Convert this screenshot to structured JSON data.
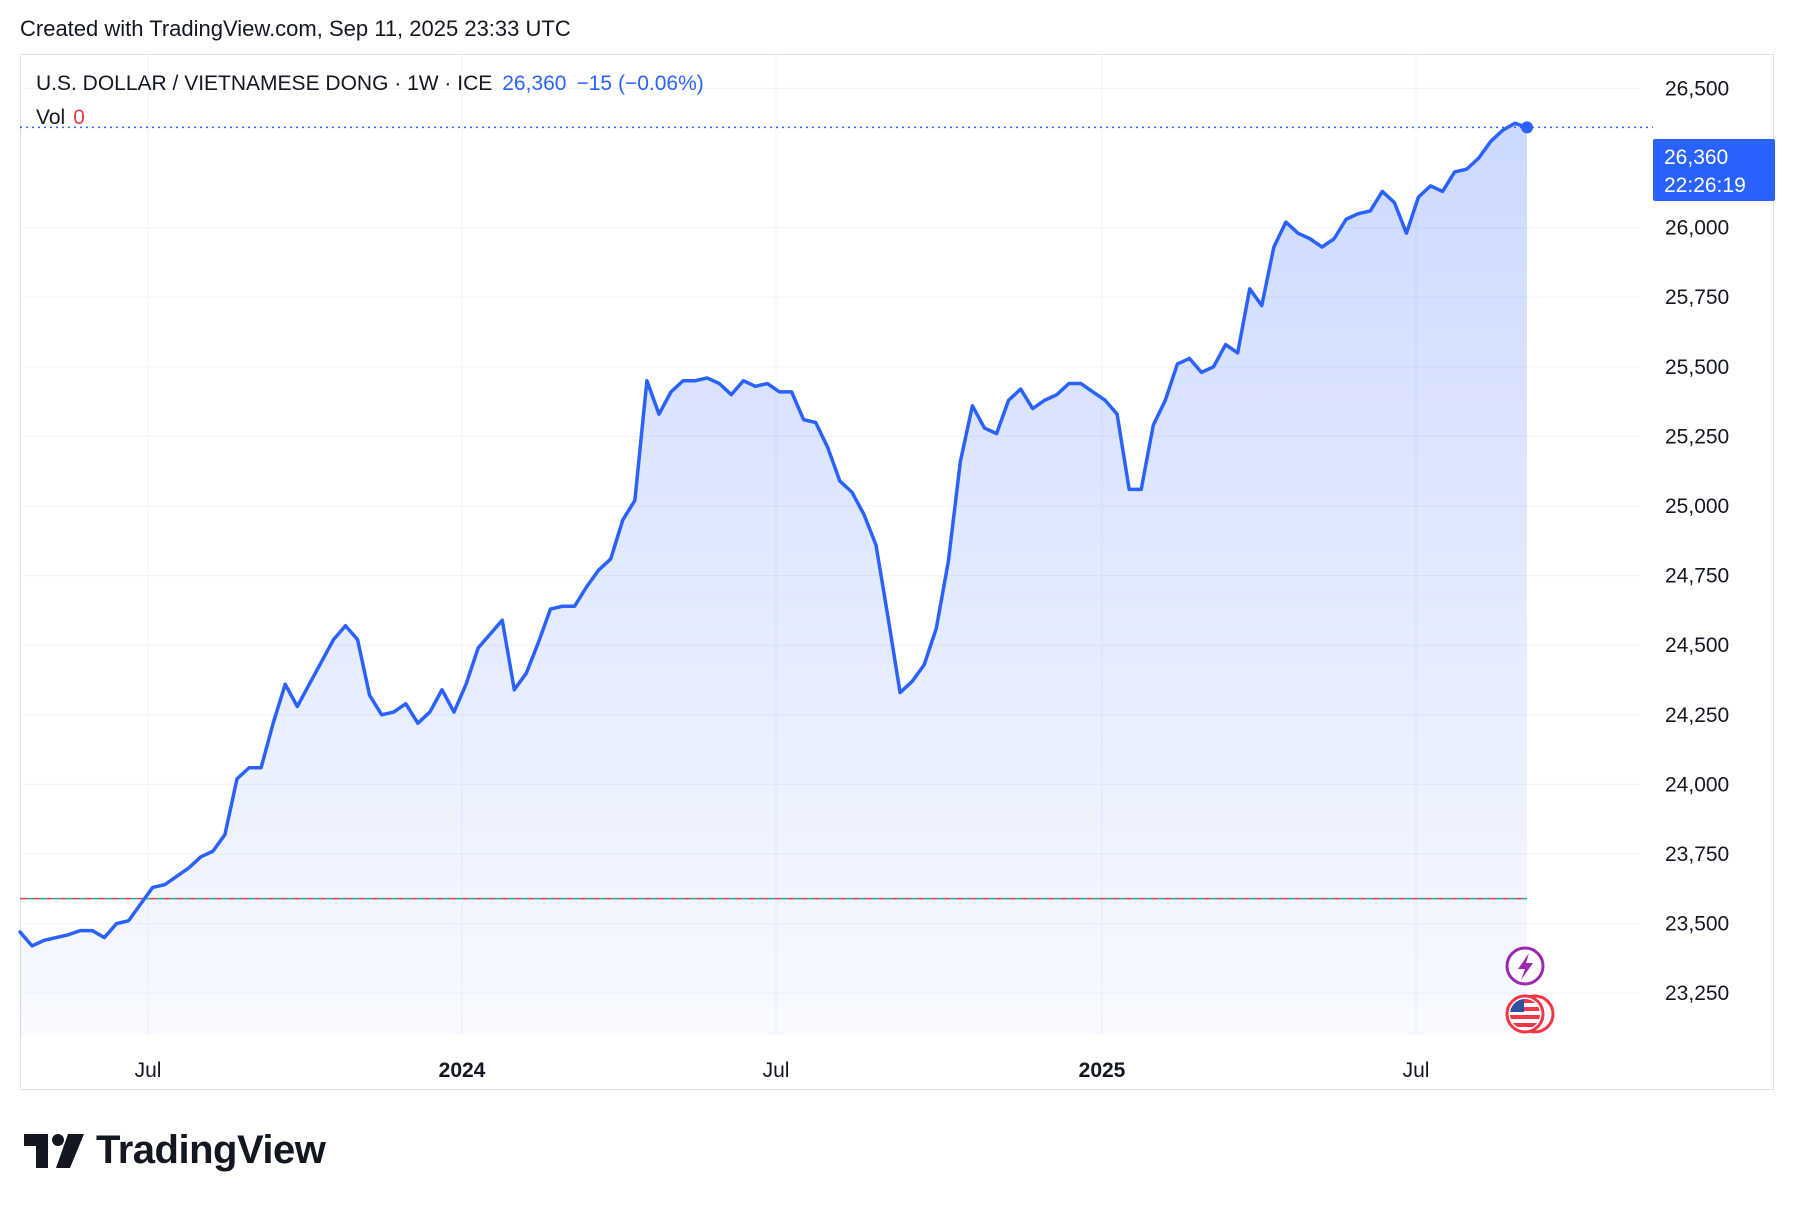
{
  "header": {
    "created_text": "Created with TradingView.com, Sep 11, 2025 23:33 UTC"
  },
  "legend": {
    "symbol": "U.S. DOLLAR / VIETNAMESE DONG · 1W · ICE",
    "last": "26,360",
    "change": "−15 (−0.06%)",
    "vol_label": "Vol",
    "vol_value": "0"
  },
  "price_label": {
    "price": "26,360",
    "countdown": "22:26:19"
  },
  "brand": {
    "name": "TradingView"
  },
  "colors": {
    "line": "#2962ff",
    "grid": "#f0f3fa",
    "baseline": "#f23645",
    "baseline_alt": "#22ab94",
    "accent": "#2962ff"
  },
  "icons": [
    "lightning-event-icon",
    "us-flag-event-icon"
  ],
  "chart_data": {
    "type": "area",
    "series": [
      {
        "values": [
          23470,
          23420,
          23440,
          23450,
          23460,
          23475,
          23475,
          23450,
          23500,
          23510,
          23570,
          23630,
          23640,
          23670,
          23700,
          23740,
          23760,
          23820,
          24020,
          24060,
          24060,
          24220,
          24360,
          24280,
          24360,
          24440,
          24520,
          24570,
          24520,
          24320,
          24250,
          24260,
          24290,
          24220,
          24260,
          24340,
          24260,
          24360,
          24490,
          24540,
          24590,
          24340,
          24400,
          24510,
          24630,
          24640,
          24640,
          24710,
          24770,
          24810,
          24950,
          25020,
          25450,
          25330,
          25410,
          25450,
          25450,
          25460,
          25440,
          25400,
          25450,
          25430,
          25440,
          25410,
          25410,
          25310,
          25300,
          25210,
          25090,
          25050,
          24970,
          24860,
          24600,
          24330,
          24370,
          24430,
          24560,
          24800,
          25160,
          25360,
          25280,
          25260,
          25380,
          25420,
          25350,
          25380,
          25400,
          25440,
          25440,
          25410,
          25380,
          25330,
          25060,
          25060,
          25290,
          25380,
          25510,
          25530,
          25480,
          25500,
          25580,
          25550,
          25780,
          25720,
          25930,
          26020,
          25980,
          25960,
          25930,
          25960,
          26030,
          26050,
          26060,
          26130,
          26090,
          25980,
          26110,
          26150,
          26130,
          26200,
          26210,
          26250,
          26310,
          26350,
          26375,
          26360
        ]
      }
    ],
    "x_axis_labels": [
      "Jul",
      "2024",
      "Jul",
      "2025",
      "Jul"
    ],
    "y_ticks": [
      "26,500",
      "26,000",
      "25,750",
      "25,500",
      "25,250",
      "25,000",
      "24,750",
      "24,500",
      "24,250",
      "24,000",
      "23,750",
      "23,500",
      "23,250"
    ],
    "ylim": [
      23100,
      26620
    ],
    "baseline_value": 23590,
    "last_value": 26360,
    "grid": true
  }
}
